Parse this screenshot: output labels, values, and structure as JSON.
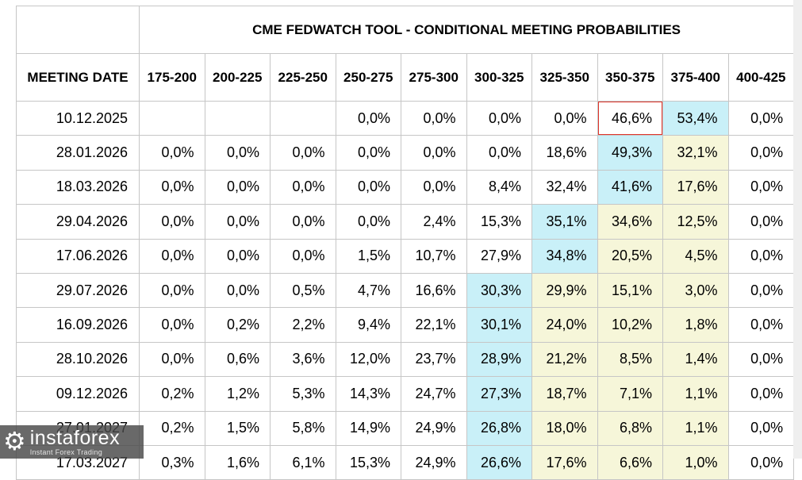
{
  "chart_data": {
    "type": "table",
    "title": "CME FEDWATCH TOOL - CONDITIONAL MEETING PROBABILITIES",
    "columns": [
      "MEETING DATE",
      "175-200",
      "200-225",
      "225-250",
      "250-275",
      "275-300",
      "300-325",
      "325-350",
      "350-375",
      "375-400",
      "400-425"
    ],
    "rows": [
      {
        "date": "10.12.2025",
        "cells": [
          [
            "",
            ""
          ],
          [
            "",
            ""
          ],
          [
            "",
            ""
          ],
          [
            "0,0%",
            ""
          ],
          [
            "0,0%",
            ""
          ],
          [
            "0,0%",
            ""
          ],
          [
            "0,0%",
            ""
          ],
          [
            "46,6%",
            "red"
          ],
          [
            "53,4%",
            "cyan"
          ],
          [
            "0,0%",
            ""
          ]
        ]
      },
      {
        "date": "28.01.2026",
        "cells": [
          [
            "0,0%",
            ""
          ],
          [
            "0,0%",
            ""
          ],
          [
            "0,0%",
            ""
          ],
          [
            "0,0%",
            ""
          ],
          [
            "0,0%",
            ""
          ],
          [
            "0,0%",
            ""
          ],
          [
            "18,6%",
            ""
          ],
          [
            "49,3%",
            "cyan"
          ],
          [
            "32,1%",
            "yellow"
          ],
          [
            "0,0%",
            ""
          ]
        ]
      },
      {
        "date": "18.03.2026",
        "cells": [
          [
            "0,0%",
            ""
          ],
          [
            "0,0%",
            ""
          ],
          [
            "0,0%",
            ""
          ],
          [
            "0,0%",
            ""
          ],
          [
            "0,0%",
            ""
          ],
          [
            "8,4%",
            ""
          ],
          [
            "32,4%",
            ""
          ],
          [
            "41,6%",
            "cyan"
          ],
          [
            "17,6%",
            "yellow"
          ],
          [
            "0,0%",
            ""
          ]
        ]
      },
      {
        "date": "29.04.2026",
        "cells": [
          [
            "0,0%",
            ""
          ],
          [
            "0,0%",
            ""
          ],
          [
            "0,0%",
            ""
          ],
          [
            "0,0%",
            ""
          ],
          [
            "2,4%",
            ""
          ],
          [
            "15,3%",
            ""
          ],
          [
            "35,1%",
            "cyan"
          ],
          [
            "34,6%",
            "yellow"
          ],
          [
            "12,5%",
            "yellow"
          ],
          [
            "0,0%",
            ""
          ]
        ]
      },
      {
        "date": "17.06.2026",
        "cells": [
          [
            "0,0%",
            ""
          ],
          [
            "0,0%",
            ""
          ],
          [
            "0,0%",
            ""
          ],
          [
            "1,5%",
            ""
          ],
          [
            "10,7%",
            ""
          ],
          [
            "27,9%",
            ""
          ],
          [
            "34,8%",
            "cyan"
          ],
          [
            "20,5%",
            "yellow"
          ],
          [
            "4,5%",
            "yellow"
          ],
          [
            "0,0%",
            ""
          ]
        ]
      },
      {
        "date": "29.07.2026",
        "cells": [
          [
            "0,0%",
            ""
          ],
          [
            "0,0%",
            ""
          ],
          [
            "0,5%",
            ""
          ],
          [
            "4,7%",
            ""
          ],
          [
            "16,6%",
            ""
          ],
          [
            "30,3%",
            "cyan"
          ],
          [
            "29,9%",
            "yellow"
          ],
          [
            "15,1%",
            "yellow"
          ],
          [
            "3,0%",
            "yellow"
          ],
          [
            "0,0%",
            ""
          ]
        ]
      },
      {
        "date": "16.09.2026",
        "cells": [
          [
            "0,0%",
            ""
          ],
          [
            "0,2%",
            ""
          ],
          [
            "2,2%",
            ""
          ],
          [
            "9,4%",
            ""
          ],
          [
            "22,1%",
            ""
          ],
          [
            "30,1%",
            "cyan"
          ],
          [
            "24,0%",
            "yellow"
          ],
          [
            "10,2%",
            "yellow"
          ],
          [
            "1,8%",
            "yellow"
          ],
          [
            "0,0%",
            ""
          ]
        ]
      },
      {
        "date": "28.10.2026",
        "cells": [
          [
            "0,0%",
            ""
          ],
          [
            "0,6%",
            ""
          ],
          [
            "3,6%",
            ""
          ],
          [
            "12,0%",
            ""
          ],
          [
            "23,7%",
            ""
          ],
          [
            "28,9%",
            "cyan"
          ],
          [
            "21,2%",
            "yellow"
          ],
          [
            "8,5%",
            "yellow"
          ],
          [
            "1,4%",
            "yellow"
          ],
          [
            "0,0%",
            ""
          ]
        ]
      },
      {
        "date": "09.12.2026",
        "cells": [
          [
            "0,2%",
            ""
          ],
          [
            "1,2%",
            ""
          ],
          [
            "5,3%",
            ""
          ],
          [
            "14,3%",
            ""
          ],
          [
            "24,7%",
            ""
          ],
          [
            "27,3%",
            "cyan"
          ],
          [
            "18,7%",
            "yellow"
          ],
          [
            "7,1%",
            "yellow"
          ],
          [
            "1,1%",
            "yellow"
          ],
          [
            "0,0%",
            ""
          ]
        ]
      },
      {
        "date": "27.01.2027",
        "cells": [
          [
            "0,2%",
            ""
          ],
          [
            "1,5%",
            ""
          ],
          [
            "5,8%",
            ""
          ],
          [
            "14,9%",
            ""
          ],
          [
            "24,9%",
            ""
          ],
          [
            "26,8%",
            "cyan"
          ],
          [
            "18,0%",
            "yellow"
          ],
          [
            "6,8%",
            "yellow"
          ],
          [
            "1,1%",
            "yellow"
          ],
          [
            "0,0%",
            ""
          ]
        ]
      },
      {
        "date": "17.03.2027",
        "cells": [
          [
            "0,3%",
            ""
          ],
          [
            "1,6%",
            ""
          ],
          [
            "6,1%",
            ""
          ],
          [
            "15,3%",
            ""
          ],
          [
            "24,9%",
            ""
          ],
          [
            "26,6%",
            "cyan"
          ],
          [
            "17,6%",
            "yellow"
          ],
          [
            "6,6%",
            "yellow"
          ],
          [
            "1,0%",
            "yellow"
          ],
          [
            "0,0%",
            ""
          ]
        ]
      }
    ],
    "highlighted_cell": {
      "row": "10.12.2025",
      "column": "350-375",
      "value": "46,6%"
    },
    "legend_semantics": {
      "cyan": "highest probability bin in row",
      "yellow": "elevated probability",
      "red": "red outlined highlighted cell"
    },
    "layout": {
      "grid": true,
      "decimal_separator": ","
    }
  },
  "colors": {
    "cell_cyan": "#c9f0f8",
    "cell_yellow": "#f6f6d9",
    "highlight_border": "#e0352b",
    "grid_line": "#c6c6c6",
    "right_margin": "#efefef",
    "watermark_bg": "rgba(72,72,72,0.82)"
  },
  "watermark": {
    "brand": "instaforex",
    "tagline": "Instant Forex Trading"
  }
}
